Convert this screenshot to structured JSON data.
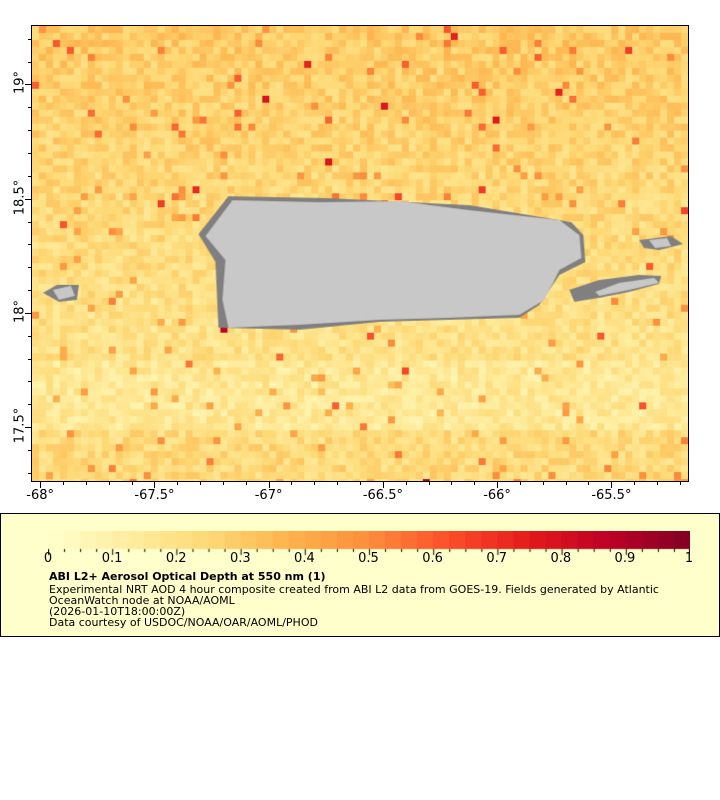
{
  "map": {
    "x_ticks": [
      "-68°",
      "-67.5°",
      "-67°",
      "-66.5°",
      "-66°",
      "-65.5°"
    ],
    "x_tick_values": [
      -68,
      -67.5,
      -67,
      -66.5,
      -66,
      -65.5
    ],
    "y_ticks": [
      "19°",
      "18.5°",
      "18°",
      "17.5°"
    ],
    "y_tick_values": [
      19,
      18.5,
      18,
      17.5
    ],
    "lon_range": [
      -68.04,
      -65.16
    ],
    "lat_range": [
      17.26,
      19.26
    ],
    "land_color": "#c8c8c8",
    "nodata_color": "#808080"
  },
  "legend": {
    "colorbar_labels": [
      "0",
      "0.1",
      "0.2",
      "0.3",
      "0.4",
      "0.5",
      "0.6",
      "0.7",
      "0.8",
      "0.9",
      "1"
    ],
    "colorbar_range": [
      0,
      1
    ],
    "colormap": [
      "#ffffcc",
      "#ffeda0",
      "#fed976",
      "#feb24c",
      "#fd8d3c",
      "#fc4e2a",
      "#e31a1c",
      "#bd0026",
      "#800026"
    ],
    "title": "ABI L2+ Aerosol Optical Depth at 550 nm (1)",
    "line1": "Experimental NRT AOD 4 hour composite created from ABI L2 data from GOES-19. Fields generated by Atlantic",
    "line2": "OceanWatch node at NOAA/AOML",
    "line3": "(2026-01-10T18:00:00Z)",
    "line4": "Data courtesy of USDOC/NOAA/OAR/AOML/PHOD"
  }
}
